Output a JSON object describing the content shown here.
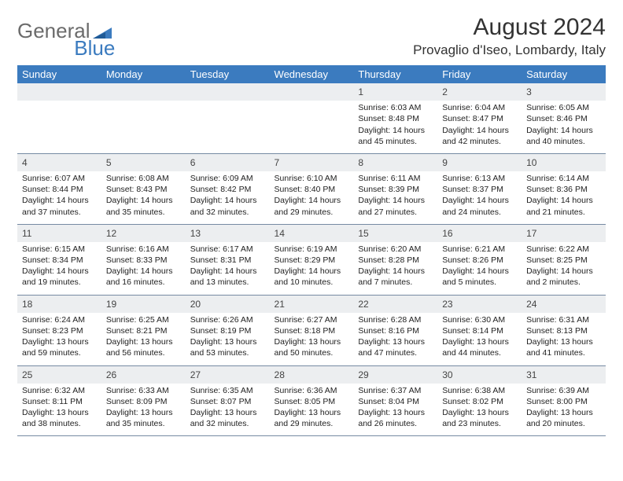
{
  "brand": {
    "part1": "General",
    "part2": "Blue",
    "text_color": "#6b6b6b",
    "accent_color": "#3b7bbf"
  },
  "title": "August 2024",
  "location": "Provaglio d'Iseo, Lombardy, Italy",
  "header_bg": "#3b7bbf",
  "header_text_color": "#ffffff",
  "daynum_bg": "#eceef0",
  "border_color": "#768ba3",
  "weekdays": [
    "Sunday",
    "Monday",
    "Tuesday",
    "Wednesday",
    "Thursday",
    "Friday",
    "Saturday"
  ],
  "weeks": [
    [
      null,
      null,
      null,
      null,
      {
        "n": "1",
        "sr": "Sunrise: 6:03 AM",
        "ss": "Sunset: 8:48 PM",
        "d1": "Daylight: 14 hours",
        "d2": "and 45 minutes."
      },
      {
        "n": "2",
        "sr": "Sunrise: 6:04 AM",
        "ss": "Sunset: 8:47 PM",
        "d1": "Daylight: 14 hours",
        "d2": "and 42 minutes."
      },
      {
        "n": "3",
        "sr": "Sunrise: 6:05 AM",
        "ss": "Sunset: 8:46 PM",
        "d1": "Daylight: 14 hours",
        "d2": "and 40 minutes."
      }
    ],
    [
      {
        "n": "4",
        "sr": "Sunrise: 6:07 AM",
        "ss": "Sunset: 8:44 PM",
        "d1": "Daylight: 14 hours",
        "d2": "and 37 minutes."
      },
      {
        "n": "5",
        "sr": "Sunrise: 6:08 AM",
        "ss": "Sunset: 8:43 PM",
        "d1": "Daylight: 14 hours",
        "d2": "and 35 minutes."
      },
      {
        "n": "6",
        "sr": "Sunrise: 6:09 AM",
        "ss": "Sunset: 8:42 PM",
        "d1": "Daylight: 14 hours",
        "d2": "and 32 minutes."
      },
      {
        "n": "7",
        "sr": "Sunrise: 6:10 AM",
        "ss": "Sunset: 8:40 PM",
        "d1": "Daylight: 14 hours",
        "d2": "and 29 minutes."
      },
      {
        "n": "8",
        "sr": "Sunrise: 6:11 AM",
        "ss": "Sunset: 8:39 PM",
        "d1": "Daylight: 14 hours",
        "d2": "and 27 minutes."
      },
      {
        "n": "9",
        "sr": "Sunrise: 6:13 AM",
        "ss": "Sunset: 8:37 PM",
        "d1": "Daylight: 14 hours",
        "d2": "and 24 minutes."
      },
      {
        "n": "10",
        "sr": "Sunrise: 6:14 AM",
        "ss": "Sunset: 8:36 PM",
        "d1": "Daylight: 14 hours",
        "d2": "and 21 minutes."
      }
    ],
    [
      {
        "n": "11",
        "sr": "Sunrise: 6:15 AM",
        "ss": "Sunset: 8:34 PM",
        "d1": "Daylight: 14 hours",
        "d2": "and 19 minutes."
      },
      {
        "n": "12",
        "sr": "Sunrise: 6:16 AM",
        "ss": "Sunset: 8:33 PM",
        "d1": "Daylight: 14 hours",
        "d2": "and 16 minutes."
      },
      {
        "n": "13",
        "sr": "Sunrise: 6:17 AM",
        "ss": "Sunset: 8:31 PM",
        "d1": "Daylight: 14 hours",
        "d2": "and 13 minutes."
      },
      {
        "n": "14",
        "sr": "Sunrise: 6:19 AM",
        "ss": "Sunset: 8:29 PM",
        "d1": "Daylight: 14 hours",
        "d2": "and 10 minutes."
      },
      {
        "n": "15",
        "sr": "Sunrise: 6:20 AM",
        "ss": "Sunset: 8:28 PM",
        "d1": "Daylight: 14 hours",
        "d2": "and 7 minutes."
      },
      {
        "n": "16",
        "sr": "Sunrise: 6:21 AM",
        "ss": "Sunset: 8:26 PM",
        "d1": "Daylight: 14 hours",
        "d2": "and 5 minutes."
      },
      {
        "n": "17",
        "sr": "Sunrise: 6:22 AM",
        "ss": "Sunset: 8:25 PM",
        "d1": "Daylight: 14 hours",
        "d2": "and 2 minutes."
      }
    ],
    [
      {
        "n": "18",
        "sr": "Sunrise: 6:24 AM",
        "ss": "Sunset: 8:23 PM",
        "d1": "Daylight: 13 hours",
        "d2": "and 59 minutes."
      },
      {
        "n": "19",
        "sr": "Sunrise: 6:25 AM",
        "ss": "Sunset: 8:21 PM",
        "d1": "Daylight: 13 hours",
        "d2": "and 56 minutes."
      },
      {
        "n": "20",
        "sr": "Sunrise: 6:26 AM",
        "ss": "Sunset: 8:19 PM",
        "d1": "Daylight: 13 hours",
        "d2": "and 53 minutes."
      },
      {
        "n": "21",
        "sr": "Sunrise: 6:27 AM",
        "ss": "Sunset: 8:18 PM",
        "d1": "Daylight: 13 hours",
        "d2": "and 50 minutes."
      },
      {
        "n": "22",
        "sr": "Sunrise: 6:28 AM",
        "ss": "Sunset: 8:16 PM",
        "d1": "Daylight: 13 hours",
        "d2": "and 47 minutes."
      },
      {
        "n": "23",
        "sr": "Sunrise: 6:30 AM",
        "ss": "Sunset: 8:14 PM",
        "d1": "Daylight: 13 hours",
        "d2": "and 44 minutes."
      },
      {
        "n": "24",
        "sr": "Sunrise: 6:31 AM",
        "ss": "Sunset: 8:13 PM",
        "d1": "Daylight: 13 hours",
        "d2": "and 41 minutes."
      }
    ],
    [
      {
        "n": "25",
        "sr": "Sunrise: 6:32 AM",
        "ss": "Sunset: 8:11 PM",
        "d1": "Daylight: 13 hours",
        "d2": "and 38 minutes."
      },
      {
        "n": "26",
        "sr": "Sunrise: 6:33 AM",
        "ss": "Sunset: 8:09 PM",
        "d1": "Daylight: 13 hours",
        "d2": "and 35 minutes."
      },
      {
        "n": "27",
        "sr": "Sunrise: 6:35 AM",
        "ss": "Sunset: 8:07 PM",
        "d1": "Daylight: 13 hours",
        "d2": "and 32 minutes."
      },
      {
        "n": "28",
        "sr": "Sunrise: 6:36 AM",
        "ss": "Sunset: 8:05 PM",
        "d1": "Daylight: 13 hours",
        "d2": "and 29 minutes."
      },
      {
        "n": "29",
        "sr": "Sunrise: 6:37 AM",
        "ss": "Sunset: 8:04 PM",
        "d1": "Daylight: 13 hours",
        "d2": "and 26 minutes."
      },
      {
        "n": "30",
        "sr": "Sunrise: 6:38 AM",
        "ss": "Sunset: 8:02 PM",
        "d1": "Daylight: 13 hours",
        "d2": "and 23 minutes."
      },
      {
        "n": "31",
        "sr": "Sunrise: 6:39 AM",
        "ss": "Sunset: 8:00 PM",
        "d1": "Daylight: 13 hours",
        "d2": "and 20 minutes."
      }
    ]
  ]
}
